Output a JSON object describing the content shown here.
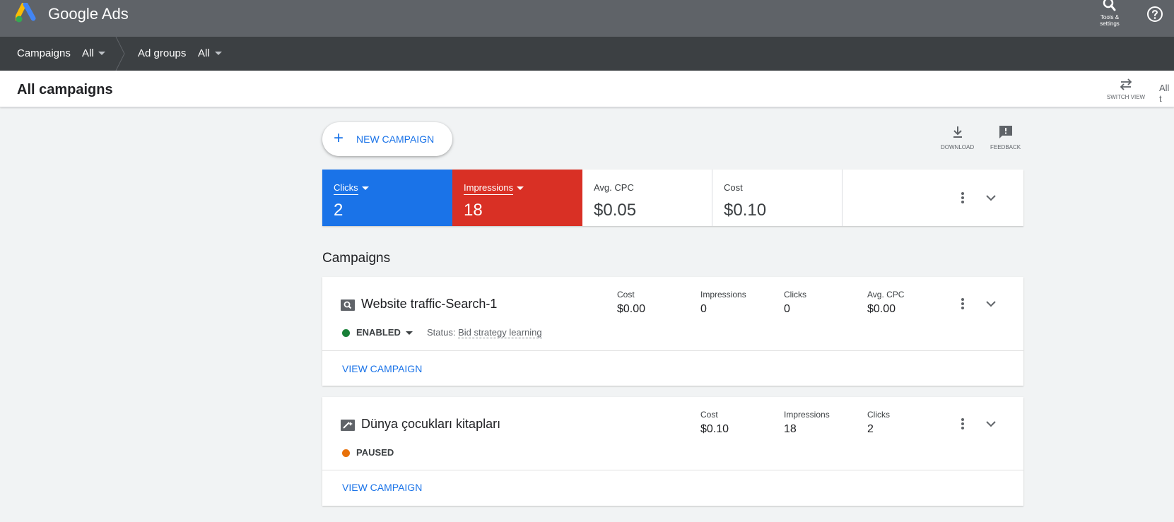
{
  "topbar": {
    "brand": "Google Ads",
    "tools_label_line1": "Tools &",
    "tools_label_line2": "settings",
    "icons": [
      "google-ads-logo",
      "wrench-icon",
      "help-icon"
    ]
  },
  "navbar": {
    "campaigns_label": "Campaigns",
    "campaigns_filter": "All",
    "adgroups_label": "Ad groups",
    "adgroups_filter": "All"
  },
  "header": {
    "title": "All campaigns",
    "switch_view_label": "SWITCH VIEW",
    "truncated_text": "All t"
  },
  "actions": {
    "new_campaign_label": "NEW CAMPAIGN",
    "download_label": "DOWNLOAD",
    "feedback_label": "FEEDBACK"
  },
  "metrics": {
    "clicks": {
      "label": "Clicks",
      "value": "2",
      "color": "#1a73e8"
    },
    "impressions": {
      "label": "Impressions",
      "value": "18",
      "color": "#d93025"
    },
    "avg_cpc": {
      "label": "Avg. CPC",
      "value": "$0.05"
    },
    "cost": {
      "label": "Cost",
      "value": "$0.10"
    }
  },
  "campaigns_section": {
    "title": "Campaigns",
    "items": [
      {
        "name": "Website traffic-Search-1",
        "type_icon": "search-campaign-icon",
        "status": "ENABLED",
        "status_color": "#188038",
        "status_note_prefix": "Status:",
        "status_note": "Bid strategy learning",
        "stats": [
          {
            "label": "Cost",
            "value": "$0.00"
          },
          {
            "label": "Impressions",
            "value": "0"
          },
          {
            "label": "Clicks",
            "value": "0"
          },
          {
            "label": "Avg. CPC",
            "value": "$0.00"
          }
        ],
        "view_label": "VIEW CAMPAIGN"
      },
      {
        "name": "Dünya çocukları kitapları",
        "type_icon": "smart-campaign-icon",
        "status": "PAUSED",
        "status_color": "#e8710a",
        "stats": [
          {
            "label": "Cost",
            "value": "$0.10"
          },
          {
            "label": "Impressions",
            "value": "18"
          },
          {
            "label": "Clicks",
            "value": "2"
          }
        ],
        "view_label": "VIEW CAMPAIGN"
      }
    ]
  }
}
